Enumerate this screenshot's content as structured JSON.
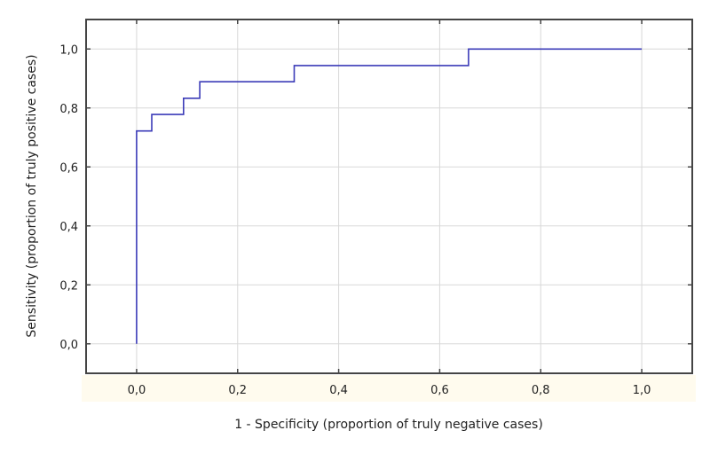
{
  "chart_data": {
    "type": "line",
    "title": "",
    "xlabel": "1 - Specificity (proportion of truly negative cases)",
    "ylabel": "Sensitivity (proportion of truly positive cases)",
    "xlim": [
      -0.1,
      1.1
    ],
    "ylim": [
      -0.1,
      1.1
    ],
    "xticks": [
      0,
      0.2,
      0.4,
      0.6,
      0.8,
      1.0
    ],
    "yticks": [
      0,
      0.2,
      0.4,
      0.6,
      0.8,
      1.0
    ],
    "xtick_labels": [
      "0,0",
      "0,2",
      "0,4",
      "0,6",
      "0,8",
      "1,0"
    ],
    "ytick_labels": [
      "0,0",
      "0,2",
      "0,4",
      "0,6",
      "0,8",
      "1,0"
    ],
    "grid": true,
    "step": true,
    "series": [
      {
        "color": "#3b3bb8",
        "x": [
          0,
          0,
          0.03,
          0.03,
          0.093,
          0.093,
          0.125,
          0.125,
          0.312,
          0.312,
          0.657,
          0.657,
          1.0
        ],
        "y": [
          0,
          0.722,
          0.722,
          0.778,
          0.778,
          0.833,
          0.833,
          0.889,
          0.889,
          0.944,
          0.944,
          1.0,
          1.0
        ]
      }
    ]
  }
}
